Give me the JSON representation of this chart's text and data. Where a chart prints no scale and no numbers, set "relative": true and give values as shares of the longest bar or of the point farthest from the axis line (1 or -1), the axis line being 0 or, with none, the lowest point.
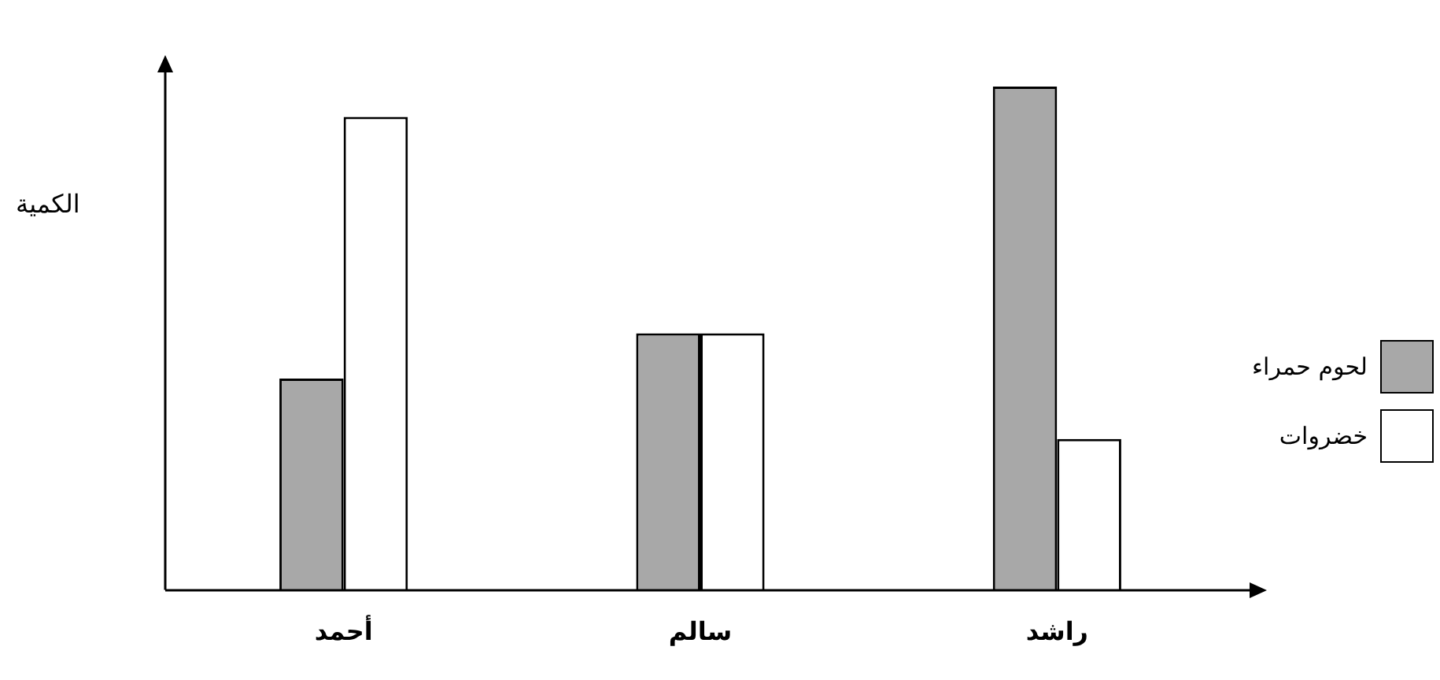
{
  "chart_data": {
    "type": "bar",
    "ylabel": "الكمية",
    "categories": [
      "أحمد",
      "سالم",
      "راشد"
    ],
    "relative": true,
    "legend": "right",
    "series": [
      {
        "name": "لحوم حمراء",
        "color": "#a8a8a8",
        "values": [
          0.42,
          0.51,
          1
        ]
      },
      {
        "name": "خضروات",
        "color": "#ffffff",
        "values": [
          0.94,
          0.51,
          0.3
        ]
      }
    ]
  }
}
